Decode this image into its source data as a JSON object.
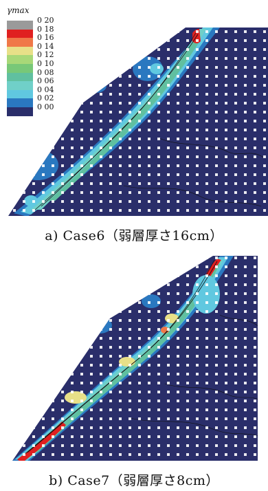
{
  "legend": {
    "title": "γmax",
    "items": [
      {
        "label": "0 20",
        "color": "#9a9a9a"
      },
      {
        "label": "0 18",
        "color": "#e02020"
      },
      {
        "label": "0 16",
        "color": "#f07848"
      },
      {
        "label": "0 14",
        "color": "#e8e088"
      },
      {
        "label": "0 12",
        "color": "#a8d878"
      },
      {
        "label": "0 10",
        "color": "#78c878"
      },
      {
        "label": "0 08",
        "color": "#60c0a0"
      },
      {
        "label": "0 06",
        "color": "#70d0c8"
      },
      {
        "label": "0 04",
        "color": "#60c8e0"
      },
      {
        "label": "0 02",
        "color": "#2a78c0"
      },
      {
        "label": "0 00",
        "color": "#2a2e6a"
      }
    ]
  },
  "captions": {
    "a": "a) Case6（弱層厚さ16cm）",
    "b": "b) Case7（弱層厚さ8cm）"
  },
  "colors": {
    "background": "#2a2e6a",
    "dots": "#ffffff",
    "contour": "#111111"
  }
}
